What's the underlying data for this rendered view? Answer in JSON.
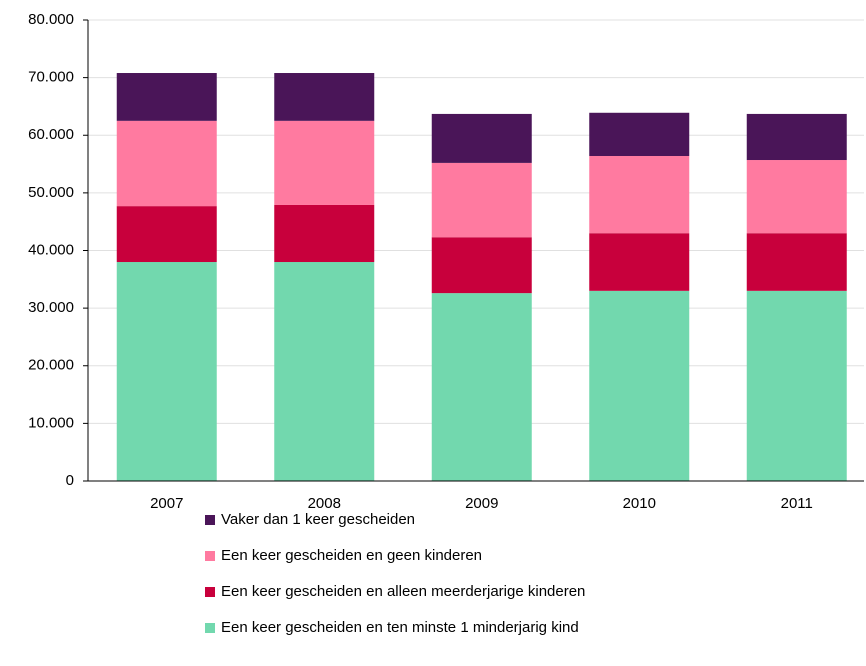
{
  "chart_data": {
    "type": "stacked_bar",
    "categories": [
      "2007",
      "2008",
      "2009",
      "2010",
      "2011"
    ],
    "series": [
      {
        "name": "Een keer gescheiden en ten minste 1 minderjarig kind",
        "color": "#72d8ae",
        "values": [
          38000,
          38000,
          32600,
          33000,
          33000
        ]
      },
      {
        "name": "Een keer gescheiden en alleen meerderjarige kinderen",
        "color": "#c8003c",
        "values": [
          9700,
          9900,
          9700,
          10000,
          10000
        ]
      },
      {
        "name": "Een keer gescheiden en geen kinderen",
        "color": "#ff7aa0",
        "values": [
          14800,
          14600,
          12900,
          13400,
          12700
        ]
      },
      {
        "name": "Vaker dan 1 keer gescheiden",
        "color": "#4a1558",
        "values": [
          8300,
          8300,
          8500,
          7500,
          8000
        ]
      }
    ],
    "ylim": [
      0,
      80000
    ],
    "yticks": [
      0,
      {
        "value": 10000,
        "label": "10.000"
      },
      {
        "value": 20000,
        "label": "20.000"
      },
      {
        "value": 30000,
        "label": "30.000"
      },
      {
        "value": 40000,
        "label": "40.000"
      },
      {
        "value": 50000,
        "label": "50.000"
      },
      {
        "value": 60000,
        "label": "60.000"
      },
      {
        "value": 70000,
        "label": "70.000"
      },
      {
        "value": 80000,
        "label": "80.000"
      }
    ],
    "grid": true
  }
}
